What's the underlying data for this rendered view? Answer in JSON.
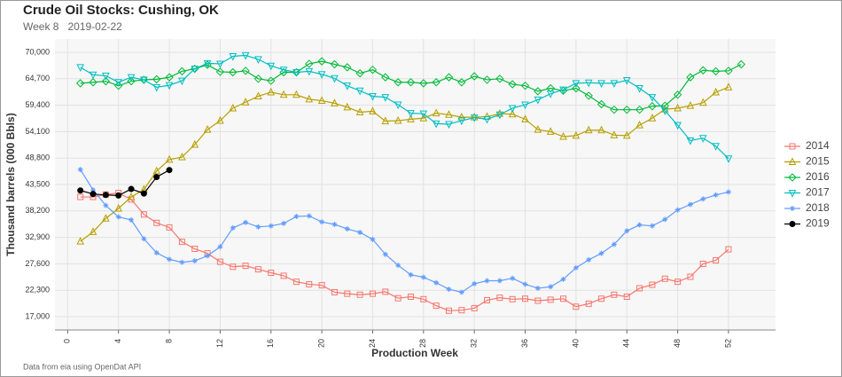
{
  "chart_data": {
    "type": "line",
    "title": "Crude Oil Stocks: Cushing, OK",
    "subtitle": "Week 8   2019-02-22",
    "caption": "Data from eia using OpenDat API",
    "x_label": "Production Week",
    "y_label": "Thousand barrels (000 Bbls)",
    "x": [
      1,
      2,
      3,
      4,
      5,
      6,
      7,
      8,
      9,
      10,
      11,
      12,
      13,
      14,
      15,
      16,
      17,
      18,
      19,
      20,
      21,
      22,
      23,
      24,
      25,
      26,
      27,
      28,
      29,
      30,
      31,
      32,
      33,
      34,
      35,
      36,
      37,
      38,
      39,
      40,
      41,
      42,
      43,
      44,
      45,
      46,
      47,
      48,
      49,
      50,
      51,
      52,
      53
    ],
    "xlim": [
      -1,
      55.7
    ],
    "xticks": [
      0,
      4,
      8,
      12,
      16,
      20,
      24,
      28,
      32,
      36,
      40,
      44,
      48,
      52
    ],
    "ylim": [
      14330,
      72670
    ],
    "yticks": [
      {
        "value": 17000,
        "label": "17,000"
      },
      {
        "value": 22300,
        "label": "22,300"
      },
      {
        "value": 27600,
        "label": "27,600"
      },
      {
        "value": 32900,
        "label": "32,900"
      },
      {
        "value": 38200,
        "label": "38,200"
      },
      {
        "value": 43500,
        "label": "43,500"
      },
      {
        "value": 48800,
        "label": "48,800"
      },
      {
        "value": 54100,
        "label": "54,100"
      },
      {
        "value": 59400,
        "label": "59,400"
      },
      {
        "value": 64700,
        "label": "64,700"
      },
      {
        "value": 70000,
        "label": "70,000"
      }
    ],
    "grid": true,
    "legend": "right",
    "series": [
      {
        "name": "2014",
        "color": "#f8766d",
        "marker": "square",
        "values": [
          41000,
          41000,
          41500,
          41800,
          40500,
          37500,
          35800,
          34900,
          32000,
          30600,
          29700,
          28000,
          27000,
          27200,
          26500,
          25800,
          25200,
          24000,
          23500,
          23300,
          21900,
          21600,
          21400,
          21600,
          22000,
          20700,
          21000,
          20500,
          19200,
          18200,
          18300,
          18700,
          20300,
          20800,
          20500,
          20600,
          20200,
          20400,
          20600,
          19000,
          19600,
          20600,
          21400,
          21000,
          22700,
          23400,
          24600,
          24000,
          25000,
          27600,
          28300,
          30500,
          null
        ]
      },
      {
        "name": "2015",
        "color": "#b79f00",
        "marker": "triangle",
        "values": [
          32100,
          34000,
          36700,
          38700,
          41000,
          42500,
          46200,
          48500,
          49000,
          51500,
          54500,
          56300,
          58800,
          60000,
          61200,
          62000,
          61500,
          61500,
          60600,
          60300,
          59800,
          59000,
          58000,
          58200,
          56200,
          56300,
          56600,
          56800,
          57800,
          57500,
          57000,
          57000,
          57100,
          57700,
          57600,
          56600,
          54500,
          54100,
          53100,
          53300,
          54400,
          54400,
          53400,
          53300,
          55400,
          56800,
          58600,
          58800,
          59300,
          59900,
          62000,
          63000,
          null
        ]
      },
      {
        "name": "2016",
        "color": "#00ba38",
        "marker": "diamond",
        "values": [
          63800,
          64000,
          64200,
          63300,
          64200,
          64500,
          64600,
          65000,
          66200,
          66700,
          67500,
          66100,
          66000,
          66300,
          64700,
          64300,
          66000,
          66000,
          67700,
          68200,
          67600,
          67000,
          65800,
          66500,
          65000,
          64000,
          64000,
          63800,
          64000,
          65000,
          64000,
          65200,
          64500,
          64700,
          63600,
          63300,
          62200,
          62800,
          62300,
          62800,
          61300,
          59600,
          58500,
          58500,
          58500,
          59200,
          59300,
          61500,
          65000,
          66400,
          66200,
          66300,
          67600
        ]
      },
      {
        "name": "2017",
        "color": "#00bfc4",
        "marker": "triangle-down",
        "values": [
          67000,
          65500,
          65300,
          64000,
          65000,
          64500,
          63000,
          63400,
          64300,
          66700,
          67800,
          67700,
          69200,
          69400,
          68600,
          67300,
          66500,
          66000,
          66200,
          65600,
          64800,
          63300,
          62300,
          61200,
          61000,
          59500,
          57800,
          57700,
          55700,
          55600,
          56300,
          56900,
          56600,
          57500,
          58800,
          59500,
          60500,
          61700,
          62500,
          63800,
          63900,
          63800,
          63800,
          64400,
          62800,
          61000,
          58300,
          55400,
          52300,
          52800,
          51200,
          48700,
          null
        ]
      },
      {
        "name": "2018",
        "color": "#619cff",
        "marker": "asterisk",
        "values": [
          46500,
          42400,
          39300,
          37000,
          36400,
          32600,
          29800,
          28500,
          27900,
          28200,
          29200,
          31000,
          34800,
          35900,
          35000,
          35200,
          35700,
          37100,
          37200,
          36000,
          35500,
          34600,
          33900,
          32500,
          29500,
          27300,
          25400,
          24900,
          23800,
          22500,
          21900,
          23600,
          24200,
          24200,
          24700,
          23500,
          22700,
          23000,
          24500,
          26800,
          28400,
          29700,
          31500,
          34200,
          35400,
          35200,
          36500,
          38400,
          39500,
          40600,
          41400,
          42000,
          null
        ]
      },
      {
        "name": "2019",
        "color": "#000000",
        "marker": "circle",
        "values": [
          42300,
          41600,
          41400,
          41300,
          42600,
          41700,
          45000,
          46400,
          null,
          null,
          null,
          null,
          null,
          null,
          null,
          null,
          null,
          null,
          null,
          null,
          null,
          null,
          null,
          null,
          null,
          null,
          null,
          null,
          null,
          null,
          null,
          null,
          null,
          null,
          null,
          null,
          null,
          null,
          null,
          null,
          null,
          null,
          null,
          null,
          null,
          null,
          null,
          null,
          null,
          null,
          null,
          null,
          null
        ]
      }
    ]
  }
}
